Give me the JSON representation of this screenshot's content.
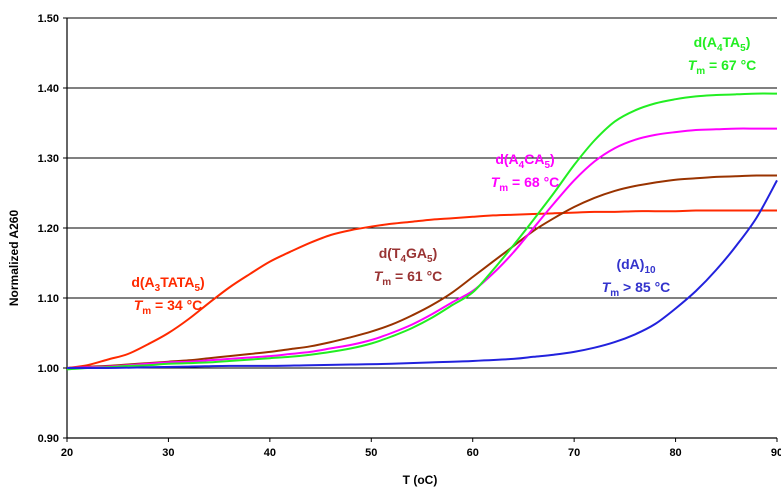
{
  "chart_data": {
    "type": "line",
    "xlabel": "T (oC)",
    "ylabel": "Normalized A260",
    "xlim": [
      20,
      90
    ],
    "ylim": [
      0.9,
      1.5
    ],
    "x_ticks": [
      "20",
      "30",
      "40",
      "50",
      "60",
      "70",
      "80",
      "90"
    ],
    "y_ticks": [
      "0.90",
      "1.00",
      "1.10",
      "1.20",
      "1.30",
      "1.40",
      "1.50"
    ],
    "grid": "horizontal",
    "series": [
      {
        "color": "#ff2a00",
        "x": [
          20,
          22,
          24,
          26,
          28,
          30,
          32,
          34,
          36,
          38,
          40,
          42,
          44,
          46,
          48,
          50,
          52,
          54,
          56,
          58,
          60,
          62,
          64,
          66,
          68,
          70,
          72,
          74,
          76,
          78,
          80,
          82,
          84,
          86,
          88,
          90
        ],
        "values": [
          1.0,
          1.004,
          1.012,
          1.02,
          1.034,
          1.05,
          1.07,
          1.093,
          1.115,
          1.134,
          1.152,
          1.166,
          1.179,
          1.19,
          1.197,
          1.202,
          1.206,
          1.209,
          1.212,
          1.214,
          1.216,
          1.218,
          1.219,
          1.22,
          1.221,
          1.222,
          1.223,
          1.223,
          1.224,
          1.224,
          1.224,
          1.225,
          1.225,
          1.225,
          1.225,
          1.225
        ]
      },
      {
        "color": "#993300",
        "x": [
          20,
          22,
          24,
          26,
          28,
          30,
          32,
          34,
          36,
          38,
          40,
          42,
          44,
          46,
          48,
          50,
          52,
          54,
          56,
          58,
          60,
          62,
          64,
          66,
          68,
          70,
          72,
          74,
          76,
          78,
          80,
          82,
          84,
          86,
          88,
          90
        ],
        "values": [
          1.0,
          1.002,
          1.003,
          1.005,
          1.007,
          1.009,
          1.011,
          1.014,
          1.017,
          1.02,
          1.023,
          1.027,
          1.031,
          1.037,
          1.044,
          1.052,
          1.062,
          1.075,
          1.09,
          1.108,
          1.13,
          1.152,
          1.174,
          1.196,
          1.214,
          1.23,
          1.243,
          1.253,
          1.26,
          1.265,
          1.269,
          1.271,
          1.273,
          1.274,
          1.275,
          1.275
        ]
      },
      {
        "color": "#ff00ff",
        "x": [
          20,
          22,
          24,
          26,
          28,
          30,
          32,
          34,
          36,
          38,
          40,
          42,
          44,
          46,
          48,
          50,
          52,
          54,
          56,
          58,
          60,
          62,
          64,
          66,
          68,
          70,
          72,
          74,
          76,
          78,
          80,
          82,
          84,
          86,
          88,
          90
        ],
        "values": [
          1.0,
          1.001,
          1.002,
          1.004,
          1.006,
          1.008,
          1.009,
          1.011,
          1.013,
          1.015,
          1.017,
          1.02,
          1.023,
          1.028,
          1.033,
          1.04,
          1.05,
          1.062,
          1.077,
          1.094,
          1.11,
          1.135,
          1.165,
          1.2,
          1.235,
          1.268,
          1.295,
          1.314,
          1.326,
          1.333,
          1.337,
          1.34,
          1.341,
          1.342,
          1.342,
          1.342
        ]
      },
      {
        "color": "#22ee22",
        "x": [
          20,
          22,
          24,
          26,
          28,
          30,
          32,
          34,
          36,
          38,
          40,
          42,
          44,
          46,
          48,
          50,
          52,
          54,
          56,
          58,
          60,
          62,
          64,
          66,
          68,
          70,
          72,
          74,
          76,
          78,
          80,
          82,
          84,
          86,
          88,
          90
        ],
        "values": [
          0.998,
          1.0,
          1.001,
          1.003,
          1.004,
          1.006,
          1.007,
          1.008,
          1.01,
          1.012,
          1.014,
          1.016,
          1.019,
          1.023,
          1.028,
          1.035,
          1.045,
          1.057,
          1.072,
          1.09,
          1.108,
          1.14,
          1.175,
          1.212,
          1.25,
          1.29,
          1.325,
          1.352,
          1.368,
          1.378,
          1.384,
          1.388,
          1.39,
          1.391,
          1.392,
          1.392
        ]
      },
      {
        "color": "#2222dd",
        "x": [
          20,
          24,
          28,
          32,
          36,
          40,
          44,
          48,
          52,
          56,
          60,
          64,
          66,
          68,
          70,
          72,
          74,
          76,
          78,
          80,
          82,
          84,
          86,
          88,
          90
        ],
        "values": [
          1.0,
          1.0,
          1.001,
          1.002,
          1.003,
          1.003,
          1.004,
          1.005,
          1.006,
          1.008,
          1.01,
          1.013,
          1.016,
          1.019,
          1.023,
          1.029,
          1.037,
          1.048,
          1.063,
          1.085,
          1.11,
          1.14,
          1.175,
          1.215,
          1.268
        ]
      }
    ],
    "annotations": [
      {
        "color": "#ff2a00",
        "text": [
          "d(A",
          "3",
          "TATA",
          "5",
          ")"
        ],
        "tm_label": "T",
        "tm_sub": "m",
        "tm_value": " = 34 °C"
      },
      {
        "color": "#993333",
        "text": [
          "d(T",
          "4",
          "GA",
          "5",
          ")"
        ],
        "tm_label": "T",
        "tm_sub": "m",
        "tm_value": " = 61 °C"
      },
      {
        "color": "#ff00ff",
        "text": [
          "d(A",
          "4",
          "CA",
          "5",
          ")"
        ],
        "tm_label": "T",
        "tm_sub": "m",
        "tm_value": " = 68 °C"
      },
      {
        "color": "#22ee22",
        "text": [
          "d(A",
          "4",
          "TA",
          "5",
          ")"
        ],
        "tm_label": "T",
        "tm_sub": "m",
        "tm_value": " = 67 °C"
      },
      {
        "color": "#3333cc",
        "text": [
          "(dA)",
          "10",
          "",
          "",
          ""
        ],
        "tm_label": "T",
        "tm_sub": "m",
        "tm_value": " > 85 °C"
      }
    ]
  }
}
